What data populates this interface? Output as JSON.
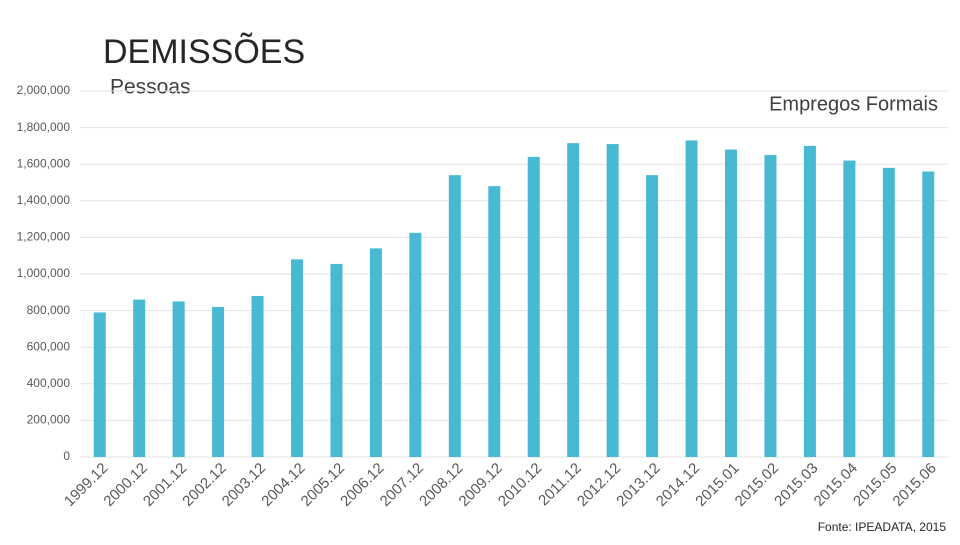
{
  "chart_data": {
    "type": "bar",
    "title": "DEMISSÕES",
    "y_label": "Pessoas",
    "legend": "Empregos Formais",
    "source": "Fonte: IPEADATA, 2015",
    "categories": [
      "1999.12",
      "2000.12",
      "2001.12",
      "2002.12",
      "2003.12",
      "2004.12",
      "2005.12",
      "2006.12",
      "2007.12",
      "2008.12",
      "2009.12",
      "2010.12",
      "2011.12",
      "2012.12",
      "2013.12",
      "2014.12",
      "2015.01",
      "2015.02",
      "2015.03",
      "2015.04",
      "2015.05",
      "2015.06"
    ],
    "values": [
      790000,
      860000,
      850000,
      820000,
      880000,
      1080000,
      1055000,
      1140000,
      1225000,
      1540000,
      1480000,
      1640000,
      1715000,
      1710000,
      1540000,
      1730000,
      1680000,
      1650000,
      1700000,
      1620000,
      1580000,
      1560000
    ],
    "color": "#47b9d2",
    "ylim": [
      0,
      2000000
    ],
    "yticks": [
      0,
      {
        "value": 200000,
        "label": "200,000"
      },
      {
        "value": 400000,
        "label": "400,000"
      },
      {
        "value": 600000,
        "label": "600,000"
      },
      {
        "value": 800000,
        "label": "800,000"
      },
      {
        "value": 1000000,
        "label": "1,000,000"
      },
      {
        "value": 1200000,
        "label": "1,200,000"
      },
      {
        "value": 1400000,
        "label": "1,400,000"
      },
      {
        "value": 1600000,
        "label": "1,600,000"
      },
      {
        "value": 1800000,
        "label": "1,800,000"
      },
      {
        "value": 2000000,
        "label": "2,000,000"
      }
    ],
    "grid": true
  }
}
